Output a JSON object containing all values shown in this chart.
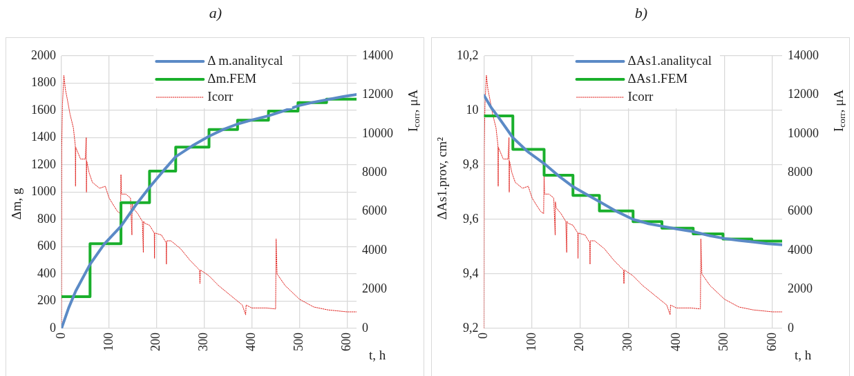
{
  "chart_data": [
    {
      "type": "line",
      "title": "a)",
      "xlabel": "t, h",
      "ylabel": "Δm, g",
      "y2label": "I$_{corr}$, μA",
      "xlim": [
        0,
        620
      ],
      "xticks": [
        0,
        100,
        200,
        300,
        400,
        500,
        600
      ],
      "ylim": [
        0,
        2000
      ],
      "yticks": [
        0,
        200,
        400,
        600,
        800,
        1000,
        1200,
        1400,
        1600,
        1800,
        2000
      ],
      "y2lim": [
        0,
        14000
      ],
      "y2ticks": [
        0,
        2000,
        4000,
        6000,
        8000,
        10000,
        12000,
        14000
      ],
      "grid": true,
      "legend": "top",
      "marker": "none",
      "series": [
        {
          "name": "Δ m.analitycal",
          "type": "line",
          "color": "#5b8ac6",
          "line_style": "solid",
          "x": [
            0,
            15,
            30,
            60,
            90,
            125,
            155,
            185,
            215,
            240,
            275,
            310,
            340,
            370,
            400,
            435,
            470,
            500,
            530,
            560,
            590,
            620
          ],
          "values": [
            0,
            150,
            275,
            470,
            620,
            750,
            900,
            1035,
            1160,
            1260,
            1340,
            1410,
            1460,
            1500,
            1530,
            1560,
            1600,
            1636,
            1660,
            1680,
            1700,
            1717
          ]
        },
        {
          "name": "Δm.FEM",
          "type": "step",
          "color": "#1aaf2c",
          "line_style": "solid",
          "x": [
            0,
            60,
            125,
            185,
            240,
            310,
            370,
            435,
            497,
            557,
            620
          ],
          "values": [
            233,
            622,
            923,
            1154,
            1331,
            1459,
            1528,
            1595,
            1657,
            1682,
            1682
          ]
        },
        {
          "name": "Icorr",
          "type": "line",
          "axis": "y2",
          "color": "#e0201c",
          "line_style": "dotted",
          "x": [
            0,
            0.5,
            2,
            5,
            8,
            12,
            18,
            25,
            29,
            29.5,
            30,
            35,
            40,
            50,
            52,
            52.5,
            53,
            58,
            65,
            80,
            92,
            100,
            110,
            118,
            124,
            125,
            126,
            135,
            145,
            148,
            148.5,
            150,
            160,
            170,
            172,
            172.5,
            175,
            185,
            195,
            195.5,
            196,
            210,
            220,
            220.5,
            221,
            230,
            250,
            270,
            290,
            291,
            292,
            310,
            330,
            350,
            380,
            387,
            388,
            400,
            430,
            450,
            451,
            453,
            470,
            500,
            530,
            560,
            600,
            620
          ],
          "values": [
            0,
            9300,
            11500,
            13000,
            12300,
            11800,
            11000,
            10300,
            9400,
            7300,
            9300,
            9000,
            8700,
            8700,
            9800,
            7000,
            8600,
            8000,
            7500,
            7200,
            7300,
            6700,
            6300,
            6000,
            5900,
            7900,
            6900,
            6900,
            6700,
            4800,
            6500,
            6200,
            5900,
            5500,
            3900,
            5500,
            5400,
            5300,
            4900,
            3600,
            4900,
            4800,
            4400,
            3300,
            4500,
            4500,
            4100,
            3500,
            3000,
            2300,
            3000,
            2700,
            2200,
            1800,
            1200,
            700,
            1200,
            1050,
            1050,
            1000,
            4600,
            2800,
            2200,
            1500,
            1100,
            950,
            850,
            850
          ]
        }
      ]
    },
    {
      "type": "line",
      "title": "b)",
      "xlabel": "t, h",
      "ylabel": "ΔAs1.prov, cm²",
      "y2label": "I$_{corr}$, μA",
      "xlim": [
        0,
        620
      ],
      "xticks": [
        0,
        100,
        200,
        300,
        400,
        500,
        600
      ],
      "ylim": [
        9.2,
        10.2
      ],
      "yticks": [
        {
          "value": 9.2,
          "label": "9,2"
        },
        {
          "value": 9.4,
          "label": "9,4"
        },
        {
          "value": 9.6,
          "label": "9,6"
        },
        {
          "value": 9.8,
          "label": "9,8"
        },
        {
          "value": 10,
          "label": "10"
        },
        {
          "value": 10.2,
          "label": "10,2"
        }
      ],
      "y2lim": [
        0,
        14000
      ],
      "y2ticks": [
        0,
        2000,
        4000,
        6000,
        8000,
        10000,
        12000,
        14000
      ],
      "grid": true,
      "legend": "top",
      "marker": "none",
      "series": [
        {
          "name": "ΔAs1.analitycal",
          "type": "line",
          "color": "#5b8ac6",
          "line_style": "solid",
          "x": [
            0,
            15,
            30,
            60,
            90,
            125,
            155,
            185,
            215,
            240,
            275,
            310,
            340,
            370,
            400,
            435,
            470,
            500,
            530,
            560,
            590,
            620
          ],
          "values": [
            10.055,
            10.01,
            9.975,
            9.9,
            9.85,
            9.805,
            9.76,
            9.72,
            9.69,
            9.665,
            9.63,
            9.6,
            9.585,
            9.575,
            9.565,
            9.555,
            9.54,
            9.53,
            9.523,
            9.517,
            9.511,
            9.507
          ]
        },
        {
          "name": "ΔAs1.FEM",
          "type": "step",
          "color": "#1aaf2c",
          "line_style": "solid",
          "x": [
            0,
            60,
            125,
            185,
            240,
            310,
            370,
            435,
            497,
            557,
            620
          ],
          "values": [
            9.98,
            9.857,
            9.762,
            9.688,
            9.631,
            9.592,
            9.568,
            9.547,
            9.528,
            9.52,
            9.52
          ]
        },
        {
          "name": "Icorr",
          "type": "line",
          "axis": "y2",
          "color": "#e0201c",
          "line_style": "dotted",
          "x": [
            0,
            0.5,
            2,
            5,
            8,
            12,
            18,
            25,
            29,
            29.5,
            30,
            35,
            40,
            50,
            52,
            52.5,
            53,
            58,
            65,
            80,
            92,
            100,
            110,
            118,
            124,
            125,
            126,
            135,
            145,
            148,
            148.5,
            150,
            160,
            170,
            172,
            172.5,
            175,
            185,
            195,
            195.5,
            196,
            210,
            220,
            220.5,
            221,
            230,
            250,
            270,
            290,
            291,
            292,
            310,
            330,
            350,
            380,
            387,
            388,
            400,
            430,
            450,
            451,
            453,
            470,
            500,
            530,
            560,
            600,
            620
          ],
          "values": [
            0,
            9300,
            11500,
            13000,
            12300,
            11800,
            11000,
            10300,
            9400,
            7300,
            9300,
            9000,
            8700,
            8700,
            9800,
            7000,
            8600,
            8000,
            7500,
            7200,
            7300,
            6700,
            6300,
            6000,
            5900,
            7900,
            6900,
            6900,
            6700,
            4800,
            6500,
            6200,
            5900,
            5500,
            3900,
            5500,
            5400,
            5300,
            4900,
            3600,
            4900,
            4800,
            4400,
            3300,
            4500,
            4500,
            4100,
            3500,
            3000,
            2300,
            3000,
            2700,
            2200,
            1800,
            1200,
            700,
            1200,
            1050,
            1050,
            1000,
            4600,
            2800,
            2200,
            1500,
            1100,
            950,
            850,
            850
          ]
        }
      ]
    }
  ]
}
